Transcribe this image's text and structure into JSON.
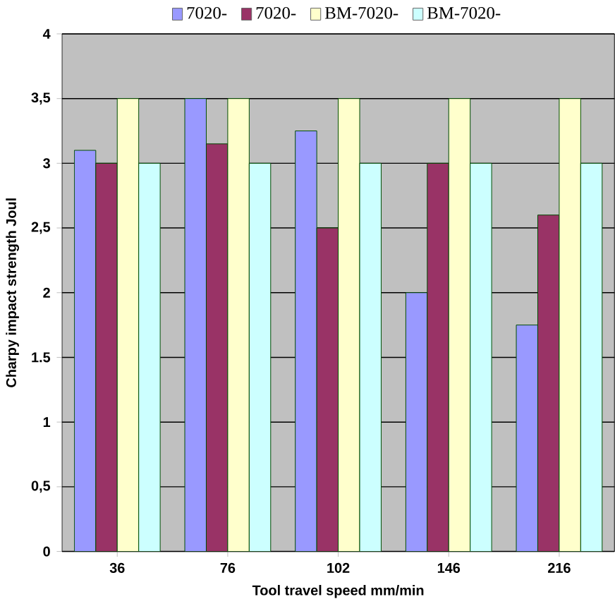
{
  "chart_data": {
    "type": "bar",
    "xlabel": "Tool travel speed mm/min",
    "ylabel": "Charpy impact strength Joul",
    "categories": [
      "36",
      "76",
      "102",
      "146",
      "216"
    ],
    "series": [
      {
        "name": "7020-",
        "color": "#9999ff",
        "values": [
          3.1,
          3.5,
          3.25,
          2.0,
          1.75
        ]
      },
      {
        "name": "7020-",
        "color": "#993366",
        "values": [
          3.0,
          3.15,
          2.5,
          3.0,
          2.6
        ]
      },
      {
        "name": "BM-7020-",
        "color": "#ffffcc",
        "values": [
          3.5,
          3.5,
          3.5,
          3.5,
          3.5
        ]
      },
      {
        "name": "BM-7020-",
        "color": "#ccffff",
        "values": [
          3.0,
          3.0,
          3.0,
          3.0,
          3.0
        ]
      }
    ],
    "ylim": [
      0,
      4
    ],
    "yticks": [
      0,
      {
        "value": 0.5,
        "label": "0,5"
      },
      1,
      {
        "value": 1.5,
        "label": "1.5"
      },
      2,
      {
        "value": 2.5,
        "label": "2,5"
      },
      3,
      {
        "value": 3.5,
        "label": "3,5"
      },
      4
    ],
    "grid": "y",
    "legend": "top"
  }
}
